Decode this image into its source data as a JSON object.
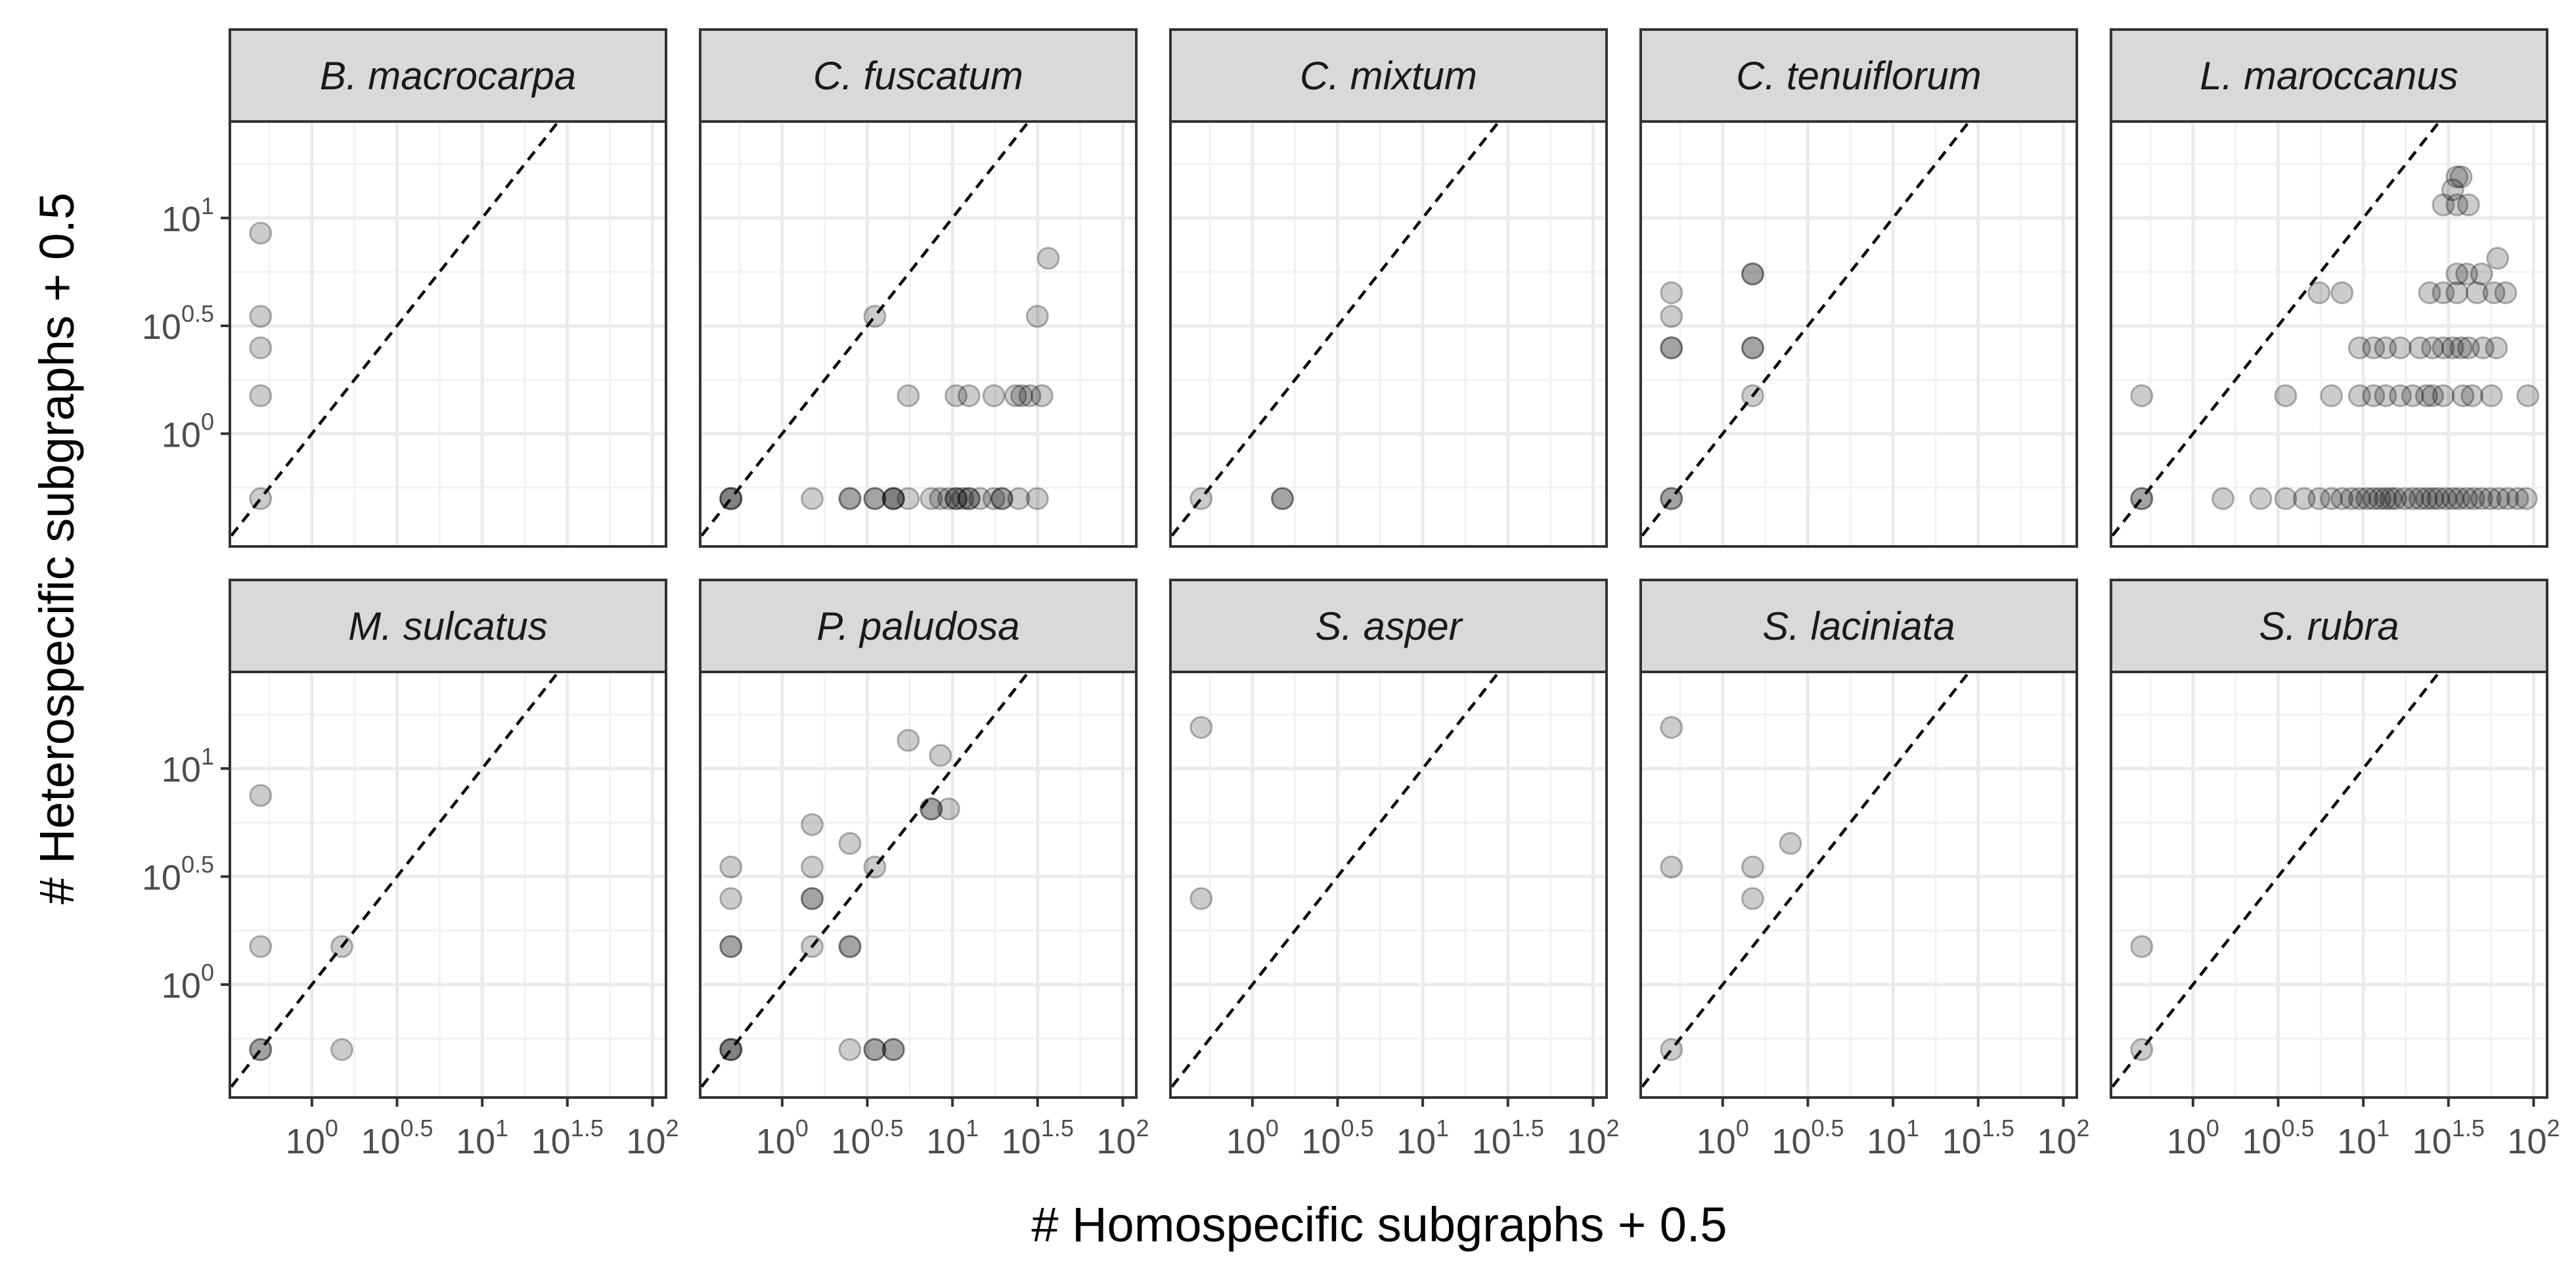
{
  "chart_data": {
    "type": "scatter",
    "layout": "faceted grid, 2 rows x 5 columns, shared axes",
    "xlabel": "# Homospecific subgraphs + 0.5",
    "ylabel": "# Heterospecific subgraphs + 0.5",
    "x_scale": "log10",
    "y_scale": "log10",
    "xlim": [
      0.33,
      120
    ],
    "ylim": [
      0.3,
      28
    ],
    "x_ticks": [
      {
        "value": 1,
        "base": "10",
        "exp": "0"
      },
      {
        "value": 3.162,
        "base": "10",
        "exp": "0.5"
      },
      {
        "value": 10,
        "base": "10",
        "exp": "1"
      },
      {
        "value": 31.62,
        "base": "10",
        "exp": "1.5"
      },
      {
        "value": 100,
        "base": "10",
        "exp": "2"
      }
    ],
    "y_ticks": [
      {
        "value": 1,
        "base": "10",
        "exp": "0"
      },
      {
        "value": 3.162,
        "base": "10",
        "exp": "0.5"
      },
      {
        "value": 10,
        "base": "10",
        "exp": "1"
      }
    ],
    "reference_line": "y = x (dashed)",
    "grid": true,
    "marker": {
      "color": "#000000",
      "opacity": 0.2
    },
    "facets": [
      {
        "title": "B. macrocarpa",
        "points": [
          [
            0.5,
            0.5
          ],
          [
            0.5,
            1.5
          ],
          [
            0.5,
            2.5
          ],
          [
            0.5,
            3.5
          ],
          [
            0.5,
            8.5
          ]
        ]
      },
      {
        "title": "C. fuscatum",
        "points": [
          [
            0.5,
            0.5
          ],
          [
            0.5,
            0.5
          ],
          [
            0.5,
            0.5
          ],
          [
            1.5,
            0.5
          ],
          [
            2.5,
            0.5
          ],
          [
            2.5,
            0.5
          ],
          [
            3.5,
            0.5
          ],
          [
            3.5,
            0.5
          ],
          [
            4.5,
            0.5
          ],
          [
            4.5,
            0.5
          ],
          [
            4.5,
            0.5
          ],
          [
            5.5,
            0.5
          ],
          [
            7.5,
            0.5
          ],
          [
            8.5,
            0.5
          ],
          [
            9.5,
            0.5
          ],
          [
            10.5,
            0.5
          ],
          [
            10.5,
            0.5
          ],
          [
            11.5,
            0.5
          ],
          [
            12.5,
            0.5
          ],
          [
            12.5,
            0.5
          ],
          [
            14.5,
            0.5
          ],
          [
            17.5,
            0.5
          ],
          [
            19.5,
            0.5
          ],
          [
            19.5,
            0.5
          ],
          [
            24.5,
            0.5
          ],
          [
            31.5,
            0.5
          ],
          [
            3.5,
            3.5
          ],
          [
            5.5,
            1.5
          ],
          [
            10.5,
            1.5
          ],
          [
            12.5,
            1.5
          ],
          [
            17.5,
            1.5
          ],
          [
            23.5,
            1.5
          ],
          [
            25.5,
            1.5
          ],
          [
            28.5,
            1.5
          ],
          [
            33.5,
            1.5
          ],
          [
            31.5,
            3.5
          ],
          [
            36.5,
            6.5
          ]
        ]
      },
      {
        "title": "C. mixtum",
        "points": [
          [
            0.5,
            0.5
          ],
          [
            1.5,
            0.5
          ],
          [
            1.5,
            0.5
          ]
        ]
      },
      {
        "title": "C. tenuiflorum",
        "points": [
          [
            0.5,
            0.5
          ],
          [
            0.5,
            0.5
          ],
          [
            0.5,
            2.5
          ],
          [
            0.5,
            2.5
          ],
          [
            0.5,
            3.5
          ],
          [
            0.5,
            4.5
          ],
          [
            1.5,
            1.5
          ],
          [
            1.5,
            2.5
          ],
          [
            1.5,
            2.5
          ],
          [
            1.5,
            5.5
          ],
          [
            1.5,
            5.5
          ]
        ]
      },
      {
        "title": "L. maroccanus",
        "points": [
          [
            0.5,
            0.5
          ],
          [
            0.5,
            0.5
          ],
          [
            0.5,
            1.5
          ],
          [
            1.5,
            0.5
          ],
          [
            2.5,
            0.5
          ],
          [
            3.5,
            0.5
          ],
          [
            4.5,
            0.5
          ],
          [
            5.5,
            0.5
          ],
          [
            6.5,
            0.5
          ],
          [
            7.5,
            0.5
          ],
          [
            8.5,
            0.5
          ],
          [
            9.5,
            0.5
          ],
          [
            10.5,
            0.5
          ],
          [
            11.5,
            0.5
          ],
          [
            12.5,
            0.5
          ],
          [
            13.5,
            0.5
          ],
          [
            14.5,
            0.5
          ],
          [
            15.5,
            0.5
          ],
          [
            17.5,
            0.5
          ],
          [
            19.5,
            0.5
          ],
          [
            21.5,
            0.5
          ],
          [
            23.5,
            0.5
          ],
          [
            25.5,
            0.5
          ],
          [
            27.5,
            0.5
          ],
          [
            30.5,
            0.5
          ],
          [
            33.5,
            0.5
          ],
          [
            36.5,
            0.5
          ],
          [
            40.5,
            0.5
          ],
          [
            44.5,
            0.5
          ],
          [
            49.5,
            0.5
          ],
          [
            55.5,
            0.5
          ],
          [
            62.5,
            0.5
          ],
          [
            70.5,
            0.5
          ],
          [
            80.5,
            0.5
          ],
          [
            90.5,
            0.5
          ],
          [
            3.5,
            1.5
          ],
          [
            6.5,
            1.5
          ],
          [
            9.5,
            1.5
          ],
          [
            11.5,
            1.5
          ],
          [
            13.5,
            1.5
          ],
          [
            16.5,
            1.5
          ],
          [
            19.5,
            1.5
          ],
          [
            23.5,
            1.5
          ],
          [
            25.5,
            1.5
          ],
          [
            29.5,
            1.5
          ],
          [
            38.5,
            1.5
          ],
          [
            43.5,
            1.5
          ],
          [
            56.5,
            1.5
          ],
          [
            92.5,
            1.5
          ],
          [
            9.5,
            2.5
          ],
          [
            11.5,
            2.5
          ],
          [
            13.5,
            2.5
          ],
          [
            16.5,
            2.5
          ],
          [
            21.5,
            2.5
          ],
          [
            25.5,
            2.5
          ],
          [
            29.5,
            2.5
          ],
          [
            33.5,
            2.5
          ],
          [
            37.5,
            2.5
          ],
          [
            41.5,
            2.5
          ],
          [
            50.5,
            2.5
          ],
          [
            60.5,
            2.5
          ],
          [
            5.5,
            4.5
          ],
          [
            7.5,
            4.5
          ],
          [
            24.5,
            4.5
          ],
          [
            29.5,
            4.5
          ],
          [
            35.5,
            4.5
          ],
          [
            46.5,
            4.5
          ],
          [
            58.5,
            4.5
          ],
          [
            68.5,
            4.5
          ],
          [
            35.5,
            5.5
          ],
          [
            40.5,
            5.5
          ],
          [
            49.5,
            5.5
          ],
          [
            61.5,
            6.5
          ],
          [
            29.5,
            11.5
          ],
          [
            35.5,
            11.5
          ],
          [
            41.5,
            11.5
          ],
          [
            33.5,
            13.5
          ],
          [
            35.5,
            15.5
          ],
          [
            37.5,
            15.5
          ]
        ]
      },
      {
        "title": "M. sulcatus",
        "points": [
          [
            0.5,
            0.5
          ],
          [
            0.5,
            0.5
          ],
          [
            0.5,
            1.5
          ],
          [
            0.5,
            7.5
          ],
          [
            1.5,
            0.5
          ],
          [
            1.5,
            1.5
          ]
        ]
      },
      {
        "title": "P. paludosa",
        "points": [
          [
            0.5,
            0.5
          ],
          [
            0.5,
            0.5
          ],
          [
            0.5,
            0.5
          ],
          [
            0.5,
            1.5
          ],
          [
            0.5,
            1.5
          ],
          [
            0.5,
            2.5
          ],
          [
            0.5,
            3.5
          ],
          [
            1.5,
            1.5
          ],
          [
            1.5,
            2.5
          ],
          [
            1.5,
            2.5
          ],
          [
            1.5,
            3.5
          ],
          [
            1.5,
            5.5
          ],
          [
            2.5,
            0.5
          ],
          [
            2.5,
            1.5
          ],
          [
            2.5,
            1.5
          ],
          [
            2.5,
            4.5
          ],
          [
            3.5,
            0.5
          ],
          [
            3.5,
            0.5
          ],
          [
            3.5,
            3.5
          ],
          [
            4.5,
            0.5
          ],
          [
            4.5,
            0.5
          ],
          [
            5.5,
            13.5
          ],
          [
            7.5,
            6.5
          ],
          [
            7.5,
            6.5
          ],
          [
            8.5,
            11.5
          ],
          [
            9.5,
            6.5
          ]
        ]
      },
      {
        "title": "S. asper",
        "points": [
          [
            0.5,
            2.5
          ],
          [
            0.5,
            15.5
          ]
        ]
      },
      {
        "title": "S. laciniata",
        "points": [
          [
            0.5,
            0.5
          ],
          [
            0.5,
            3.5
          ],
          [
            0.5,
            15.5
          ],
          [
            1.5,
            2.5
          ],
          [
            1.5,
            3.5
          ],
          [
            2.5,
            4.5
          ]
        ]
      },
      {
        "title": "S. rubra",
        "points": [
          [
            0.5,
            0.5
          ],
          [
            0.5,
            1.5
          ]
        ]
      }
    ]
  }
}
